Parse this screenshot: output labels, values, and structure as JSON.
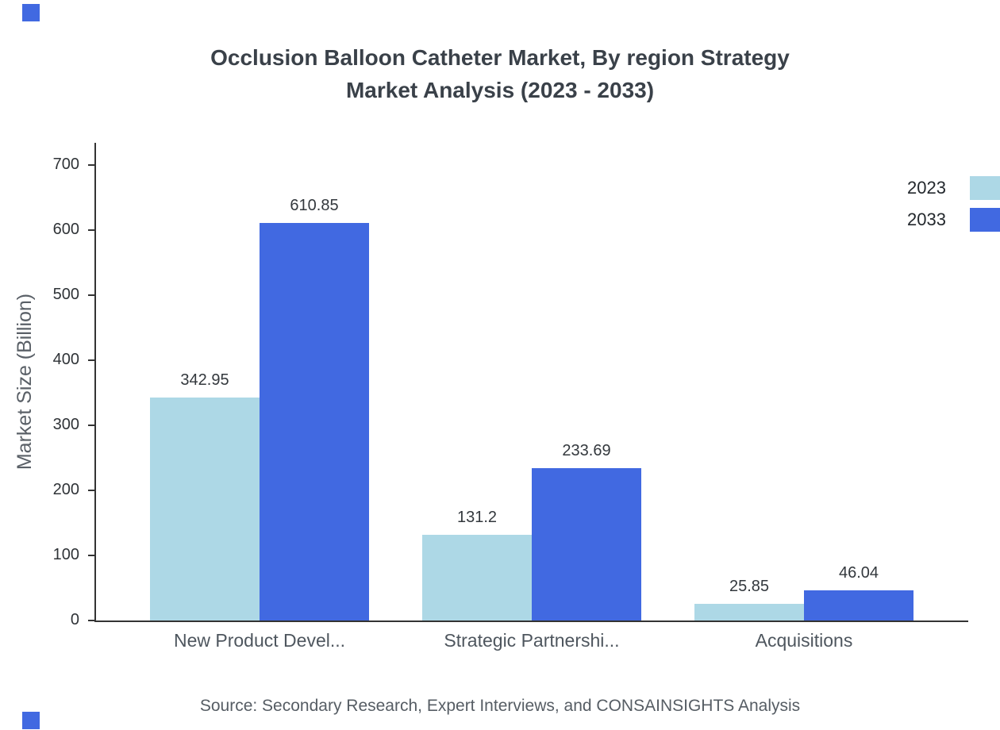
{
  "title": {
    "line1": "Occlusion Balloon Catheter Market, By region Strategy",
    "line2": "Market Analysis (2023 - 2033)"
  },
  "source": "Source: Secondary Research, Expert Interviews, and CONSAINSIGHTS Analysis",
  "colors": {
    "series_2023": "#ADD8E6",
    "series_2033": "#4169E1",
    "brand_square": "#4169E1",
    "axis": "#333333"
  },
  "chart_data": {
    "type": "bar",
    "title": "Occlusion Balloon Catheter Market, By region Strategy Market Analysis (2023 - 2033)",
    "ylabel": "Market Size (Billion)",
    "xlabel": "",
    "categories": [
      "New Product Devel...",
      "Strategic Partnershi...",
      "Acquisitions"
    ],
    "series": [
      {
        "name": "2023",
        "color": "#ADD8E6",
        "values": [
          342.95,
          131.2,
          25.85
        ]
      },
      {
        "name": "2033",
        "color": "#4169E1",
        "values": [
          610.85,
          233.69,
          46.04
        ]
      }
    ],
    "ylim": [
      0,
      700
    ],
    "yticks": [
      0,
      100,
      200,
      300,
      400,
      500,
      600,
      700
    ],
    "grid": false,
    "legend_position": "top-right",
    "value_labels": true
  }
}
